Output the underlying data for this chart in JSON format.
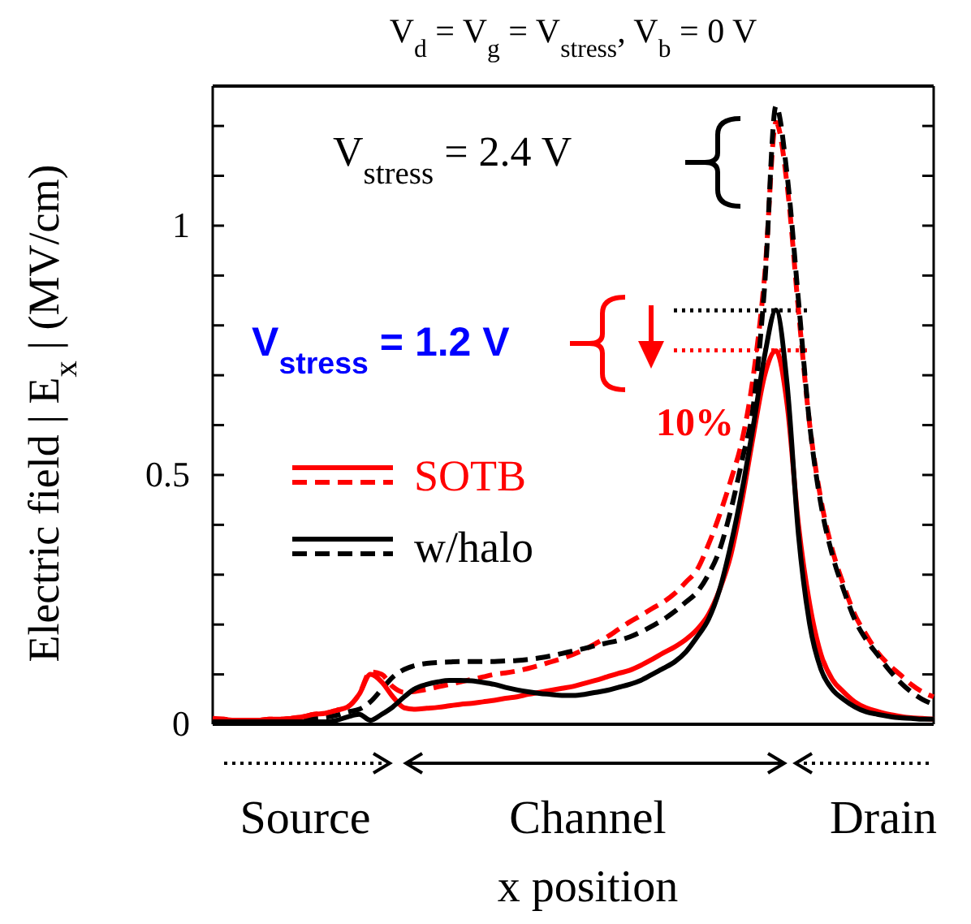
{
  "chart_data": {
    "type": "line",
    "title": "V$_{d}$ = V$_{g}$ = V$_{stress}$, V$_{b}$ = 0 V",
    "xlabel": "x position",
    "ylabel": "Electric field | E$_{x}$ | (MV/cm)",
    "categories": [
      null,
      null,
      null,
      null,
      null,
      null,
      null,
      null,
      null,
      null,
      null,
      null,
      null,
      null,
      null,
      null,
      null,
      null,
      null,
      null,
      null,
      null,
      null,
      null,
      null,
      null,
      null,
      null,
      null,
      null,
      null,
      null,
      null,
      null,
      null,
      null,
      null,
      null,
      null,
      null,
      null,
      null,
      null,
      null,
      null,
      null,
      null,
      null,
      null,
      null,
      null,
      null,
      null,
      null,
      null,
      null,
      null,
      null,
      null,
      null,
      null,
      null,
      null,
      null,
      null
    ],
    "ylim": [
      0,
      1.28
    ],
    "yticks": [
      0,
      {
        "value": 0.1,
        "label": null
      },
      {
        "value": 0.2,
        "label": null
      },
      {
        "value": 0.3,
        "label": null
      },
      {
        "value": 0.4,
        "label": null
      },
      0.5,
      {
        "value": 0.6,
        "label": null
      },
      {
        "value": 0.7,
        "label": null
      },
      {
        "value": 0.8,
        "label": null
      },
      {
        "value": 0.9,
        "label": null
      },
      1,
      {
        "value": 1.1,
        "label": null
      },
      {
        "value": 1.2,
        "label": null
      }
    ],
    "tick_labels": "y",
    "grid": false,
    "legend": "left",
    "marker": "none",
    "series": [
      {
        "name": "SOTB",
        "color": "#ff0000",
        "line_style": "dashed",
        "values": [
          0.01,
          0.01,
          0.008,
          0.008,
          0.008,
          0.01,
          0.01,
          0.012,
          0.015,
          0.02,
          0.022,
          0.028,
          0.035,
          0.06,
          0.105,
          0.1,
          0.075,
          0.064,
          0.066,
          0.07,
          0.075,
          0.08,
          0.085,
          0.09,
          0.095,
          0.1,
          0.103,
          0.107,
          0.112,
          0.118,
          0.125,
          0.132,
          0.14,
          0.15,
          0.162,
          0.175,
          0.19,
          0.205,
          0.218,
          0.232,
          0.245,
          0.262,
          0.285,
          0.31,
          0.36,
          0.42,
          0.49,
          0.57,
          0.7,
          0.9,
          1.207,
          1.08,
          0.83,
          0.6,
          0.45,
          0.35,
          0.28,
          0.22,
          0.18,
          0.145,
          0.12,
          0.1,
          0.08,
          0.065,
          0.055
        ]
      },
      {
        "name": "w/halo",
        "color": "#000000",
        "line_style": "dashed",
        "values": [
          0.005,
          0.005,
          0.005,
          0.005,
          0.005,
          0.005,
          0.007,
          0.008,
          0.01,
          0.012,
          0.014,
          0.018,
          0.025,
          0.03,
          0.045,
          0.07,
          0.095,
          0.11,
          0.118,
          0.122,
          0.124,
          0.125,
          0.126,
          0.126,
          0.126,
          0.126,
          0.127,
          0.128,
          0.13,
          0.133,
          0.137,
          0.142,
          0.147,
          0.152,
          0.158,
          0.163,
          0.168,
          0.175,
          0.185,
          0.197,
          0.21,
          0.226,
          0.245,
          0.265,
          0.3,
          0.35,
          0.43,
          0.53,
          0.64,
          0.88,
          1.24,
          1.1,
          0.85,
          0.6,
          0.44,
          0.34,
          0.27,
          0.21,
          0.17,
          0.14,
          0.11,
          0.085,
          0.065,
          0.05,
          0.04
        ]
      },
      {
        "color": "#ff0000",
        "line_style": "solid",
        "values": [
          0.012,
          0.01,
          0.008,
          0.008,
          0.008,
          0.01,
          0.01,
          0.012,
          0.015,
          0.02,
          0.022,
          0.028,
          0.035,
          0.06,
          0.1,
          0.085,
          0.055,
          0.033,
          0.03,
          0.032,
          0.034,
          0.037,
          0.04,
          0.042,
          0.045,
          0.048,
          0.052,
          0.055,
          0.06,
          0.064,
          0.068,
          0.072,
          0.076,
          0.082,
          0.088,
          0.095,
          0.102,
          0.108,
          0.118,
          0.13,
          0.143,
          0.155,
          0.17,
          0.19,
          0.22,
          0.27,
          0.34,
          0.45,
          0.58,
          0.7,
          0.749,
          0.64,
          0.4,
          0.24,
          0.14,
          0.09,
          0.065,
          0.045,
          0.033,
          0.026,
          0.02,
          0.016,
          0.013,
          0.012,
          0.01
        ]
      },
      {
        "color": "#000000",
        "line_style": "solid",
        "values": [
          0.005,
          0.005,
          0.005,
          0.005,
          0.005,
          0.005,
          0.005,
          0.005,
          0.005,
          0.005,
          0.005,
          0.008,
          0.015,
          0.02,
          0.008,
          0.02,
          0.035,
          0.055,
          0.072,
          0.08,
          0.085,
          0.088,
          0.088,
          0.087,
          0.084,
          0.08,
          0.074,
          0.069,
          0.065,
          0.062,
          0.06,
          0.058,
          0.058,
          0.06,
          0.064,
          0.068,
          0.074,
          0.08,
          0.088,
          0.1,
          0.112,
          0.125,
          0.145,
          0.175,
          0.21,
          0.27,
          0.36,
          0.47,
          0.6,
          0.74,
          0.831,
          0.68,
          0.38,
          0.2,
          0.11,
          0.07,
          0.05,
          0.035,
          0.025,
          0.02,
          0.016,
          0.013,
          0.012,
          0.01,
          0.01
        ]
      }
    ],
    "ref_lines": [
      {
        "axis": "y",
        "value": 0.83,
        "color": "#000000",
        "line_style": "dotted"
      },
      {
        "axis": "y",
        "value": 0.75,
        "color": "#ff0000",
        "line_style": "dotted"
      }
    ],
    "annotations": [
      "V$_{stress}$ = 2.4 V",
      "V$_{stress}$ = 1.2 V",
      "10%",
      "Source",
      "Channel",
      "Drain"
    ]
  }
}
